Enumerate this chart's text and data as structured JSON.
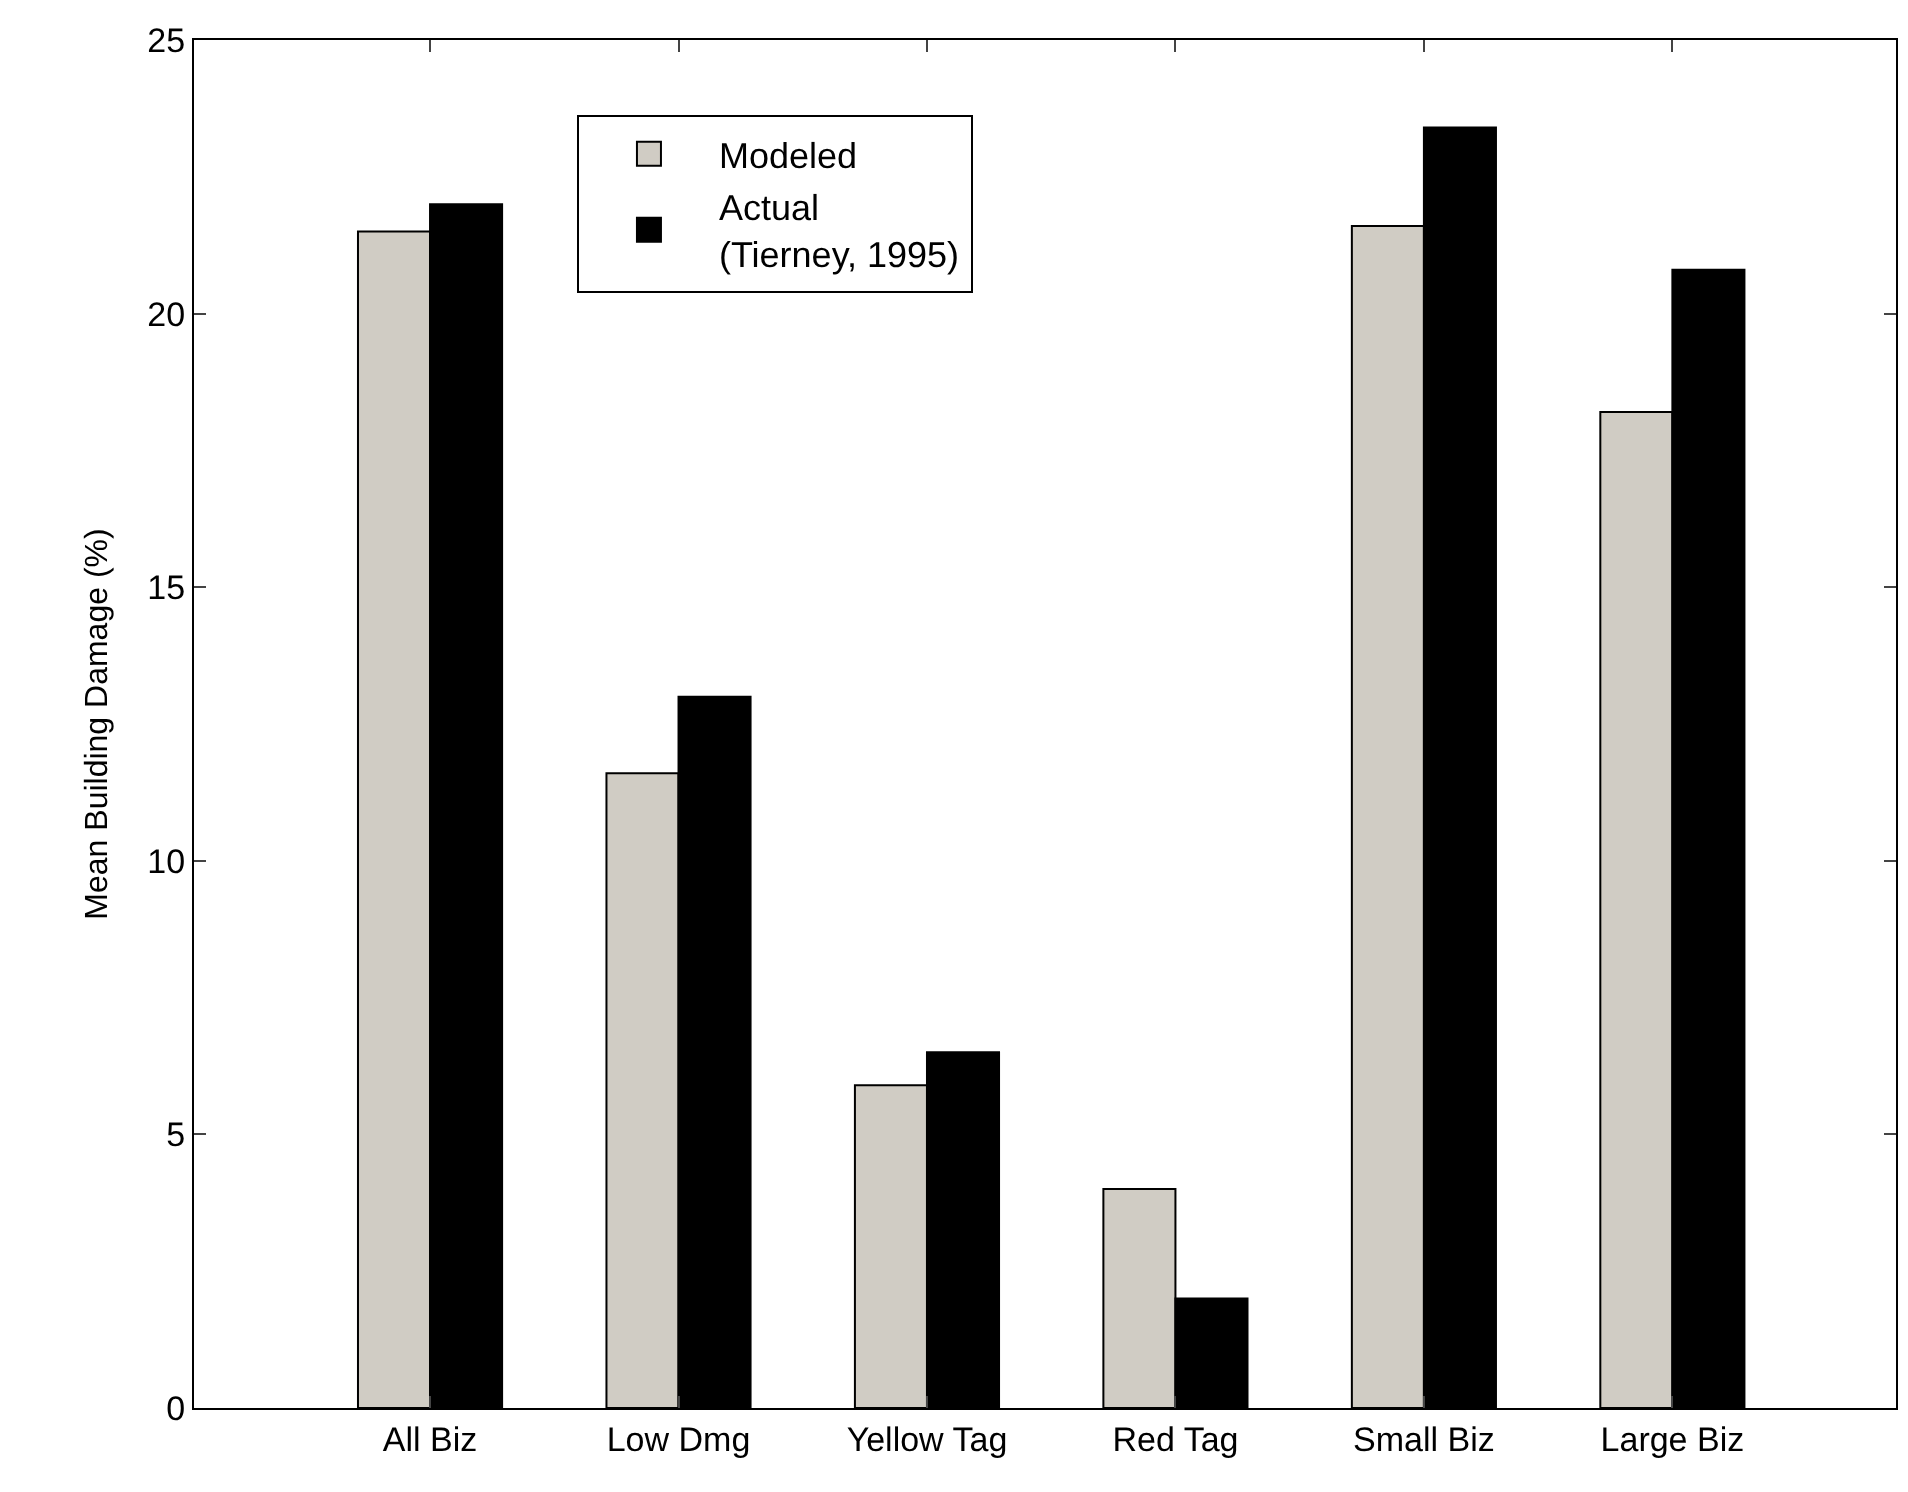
{
  "chart_data": {
    "type": "bar",
    "ylabel": "Mean Building Damage (%)",
    "categories": [
      "All Biz",
      "Low Dmg",
      "Yellow Tag",
      "Red Tag",
      "Small Biz",
      "Large Biz"
    ],
    "series": [
      {
        "name": "Modeled",
        "color": "#d0ccc4",
        "values": [
          21.5,
          11.6,
          5.9,
          4.0,
          21.6,
          18.2
        ]
      },
      {
        "name": "Actual\n(Tierney, 1995)",
        "color": "#000000",
        "values": [
          22.0,
          13.0,
          6.5,
          2.0,
          23.4,
          20.8
        ]
      }
    ],
    "ylim": [
      0,
      25
    ],
    "yticks": [
      0,
      5,
      10,
      15,
      20,
      25
    ],
    "legend": "top left"
  }
}
